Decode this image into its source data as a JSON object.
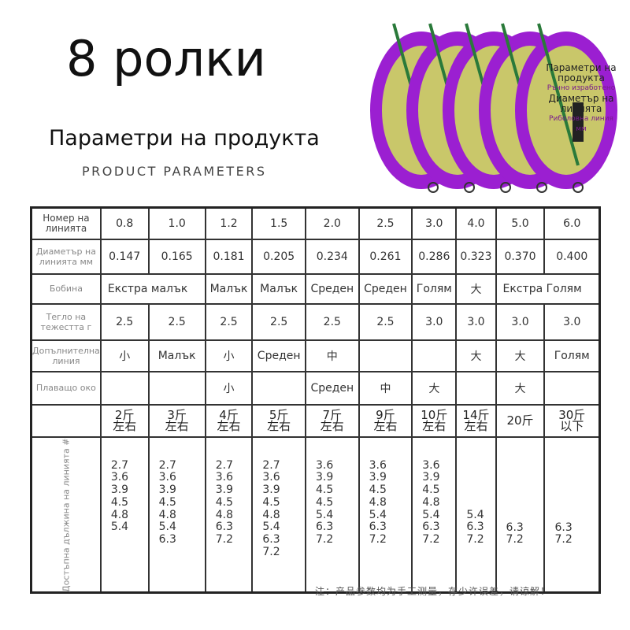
{
  "title": "8 ролки",
  "subtitle": "Параметри на продукта",
  "subtitle_en": "PRODUCT PARAMETERS",
  "spool_label": {
    "line1": "Параметри на продукта",
    "line2": "Ръчно изработено",
    "line3": "Диаметър на линията",
    "line4": "Риболовна линия",
    "line5": "мм"
  },
  "colors": {
    "spool": "#9b1fd1",
    "accent": "#2a7a3a"
  },
  "table": {
    "rows": [
      {
        "header": "Номер на линията",
        "cells": [
          "0.8",
          "1.0",
          "1.2",
          "1.5",
          "2.0",
          "2.5",
          "3.0",
          "4.0",
          "5.0",
          "6.0"
        ]
      },
      {
        "header": "Диаметър на линията мм",
        "cells": [
          "0.147",
          "0.165",
          "0.181",
          "0.205",
          "0.234",
          "0.261",
          "0.286",
          "0.323",
          "0.370",
          "0.400"
        ]
      },
      {
        "header": "Бобина",
        "cells": [
          "Екстра малък",
          "",
          "Малък",
          "Малък",
          "Среден",
          "Среден",
          "Голям",
          "大",
          "Екстра Голям",
          ""
        ]
      },
      {
        "header": "Тегло на тежестта г",
        "cells": [
          "2.5",
          "2.5",
          "2.5",
          "2.5",
          "2.5",
          "2.5",
          "3.0",
          "3.0",
          "3.0",
          "3.0"
        ]
      },
      {
        "header": "Допълнителна линия",
        "cells": [
          "小",
          "Малък",
          "小",
          "Среден",
          "中",
          "",
          "",
          "大",
          "大",
          "Голям"
        ]
      },
      {
        "header": "Плаващо око",
        "cells": [
          "",
          "",
          "小",
          "",
          "Среден",
          "中",
          "大",
          "",
          "大",
          ""
        ]
      },
      {
        "header": "",
        "cells": [
          "2斤\n左右",
          "3斤\n左右",
          "4斤\n左右",
          "5斤\n左右",
          "7斤\n左右",
          "9斤\n左右",
          "10斤\n左右",
          "14斤\n左右",
          "20斤",
          "30斤\n以下"
        ]
      }
    ],
    "length_header": "Достъпна дължина на линията #",
    "lengths": [
      [
        "2.7",
        "3.6",
        "3.9",
        "4.5",
        "4.8",
        "5.4"
      ],
      [
        "2.7",
        "3.6",
        "3.9",
        "4.5",
        "4.8",
        "5.4",
        "6.3"
      ],
      [
        "2.7",
        "3.6",
        "3.9",
        "4.5",
        "4.8",
        "6.3",
        "7.2"
      ],
      [
        "2.7",
        "3.6",
        "3.9",
        "4.5",
        "4.8",
        "5.4",
        "6.3",
        "7.2"
      ],
      [
        "3.6",
        "3.9",
        "4.5",
        "4.5",
        "5.4",
        "6.3",
        "7.2"
      ],
      [
        "3.6",
        "3.9",
        "4.5",
        "4.8",
        "5.4",
        "6.3",
        "7.2"
      ],
      [
        "3.6",
        "3.9",
        "4.5",
        "4.8",
        "5.4",
        "6.3",
        "7.2"
      ],
      [
        "5.4",
        "6.3",
        "7.2"
      ],
      [
        "6.3",
        "7.2"
      ],
      [
        "6.3",
        "7.2"
      ]
    ]
  },
  "note": "注：产品参数均为手工测量，存少许误差，请谅解！"
}
